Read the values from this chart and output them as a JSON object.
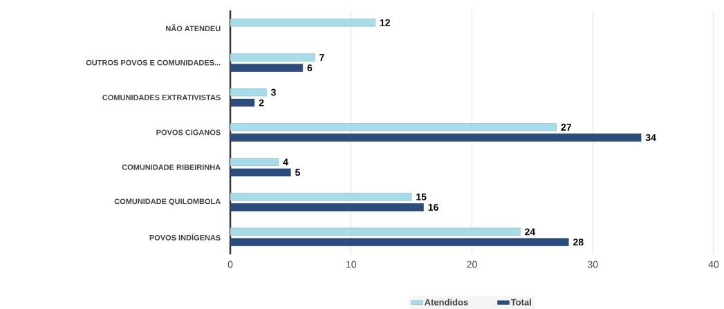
{
  "chart_data": {
    "type": "bar",
    "orientation": "horizontal",
    "categories": [
      "NÃO ATENDEU",
      "OUTROS POVOS E COMUNIDADES...",
      "COMUNIDADES EXTRATIVISTAS",
      "POVOS CIGANOS",
      "COMUNIDADE RIBEIRINHA",
      "COMUNIDADE QUILOMBOLA",
      "POVOS INDÍGENAS"
    ],
    "series": [
      {
        "name": "Atendidos",
        "color": "#a8dce8",
        "values": [
          12,
          7,
          3,
          27,
          4,
          15,
          24
        ]
      },
      {
        "name": "Total",
        "color": "#2c4c7c",
        "values": [
          null,
          6,
          2,
          34,
          5,
          16,
          28
        ]
      }
    ],
    "xlim": [
      0,
      40
    ],
    "xticks": [
      0,
      10,
      20,
      30,
      40
    ],
    "grid": "x",
    "legend": "bottom",
    "data_labels": true
  }
}
